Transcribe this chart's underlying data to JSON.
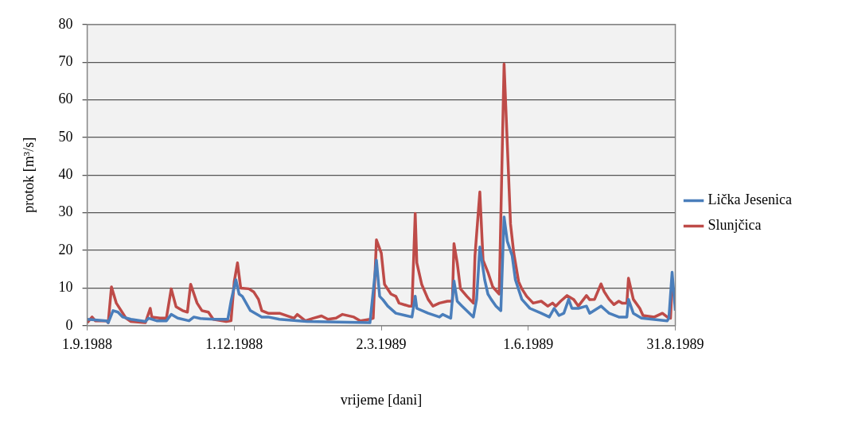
{
  "chart_data": {
    "type": "line",
    "xlabel": "vrijeme [dani]",
    "ylabel": "protok [m³/s]",
    "xlim": [
      "1988-09-01",
      "1989-08-31"
    ],
    "xticks": [
      {
        "value": "1988-09-01",
        "label": "1.9.1988"
      },
      {
        "value": "1988-12-01",
        "label": "1.12.1988"
      },
      {
        "value": "1989-03-02",
        "label": "2.3.1989"
      },
      {
        "value": "1989-06-01",
        "label": "1.6.1989"
      },
      {
        "value": "1989-08-31",
        "label": "31.8.1989"
      }
    ],
    "ylim": [
      0,
      80
    ],
    "yticks": [
      0,
      10,
      20,
      30,
      40,
      50,
      60,
      70,
      80
    ],
    "grid": "y",
    "legend": "right",
    "marker": "none",
    "line_style": "solid",
    "series": [
      {
        "name": "Lička Jesenica",
        "color": "#4a7ebb",
        "x": [
          "1988-09-01",
          "1988-09-13",
          "1988-09-14",
          "1988-09-17",
          "1988-09-20",
          "1988-09-23",
          "1988-09-28",
          "1988-10-07",
          "1988-10-09",
          "1988-10-14",
          "1988-10-20",
          "1988-10-23",
          "1988-10-27",
          "1988-11-03",
          "1988-11-06",
          "1988-11-10",
          "1988-11-19",
          "1988-11-27",
          "1988-11-29",
          "1988-12-02",
          "1988-12-04",
          "1988-12-06",
          "1988-12-11",
          "1988-12-18",
          "1988-12-22",
          "1988-12-29",
          "1989-01-10",
          "1989-01-15",
          "1989-02-23",
          "1989-02-27",
          "1989-03-01",
          "1989-03-03",
          "1989-03-06",
          "1989-03-11",
          "1989-03-17",
          "1989-03-21",
          "1989-03-23",
          "1989-03-24",
          "1989-03-31",
          "1989-04-07",
          "1989-04-09",
          "1989-04-14",
          "1989-04-16",
          "1989-04-18",
          "1989-04-21",
          "1989-04-28",
          "1989-04-30",
          "1989-05-02",
          "1989-05-05",
          "1989-05-07",
          "1989-05-09",
          "1989-05-12",
          "1989-05-15",
          "1989-05-17",
          "1989-05-19",
          "1989-05-22",
          "1989-05-24",
          "1989-05-28",
          "1989-06-02",
          "1989-06-09",
          "1989-06-14",
          "1989-06-17",
          "1989-06-20",
          "1989-06-23",
          "1989-06-26",
          "1989-06-28",
          "1989-07-02",
          "1989-07-07",
          "1989-07-09",
          "1989-07-16",
          "1989-07-21",
          "1989-07-27",
          "1989-08-01",
          "1989-08-02",
          "1989-08-05",
          "1989-08-10",
          "1989-08-26",
          "1989-08-27",
          "1989-08-29",
          "1989-08-31"
        ],
        "values": [
          1.7,
          1.3,
          0.8,
          4,
          3.6,
          2.3,
          1.7,
          1.1,
          2,
          1.3,
          1.3,
          3,
          2,
          1.3,
          2.3,
          1.9,
          1.7,
          1.7,
          6.5,
          12.2,
          8.4,
          7.8,
          4,
          2.3,
          2.3,
          1.7,
          1.3,
          1.1,
          0.8,
          17.4,
          7.8,
          6.9,
          5.2,
          3.3,
          2.7,
          2.3,
          7.8,
          4.6,
          3.3,
          2.3,
          3,
          2,
          11.9,
          6.5,
          5.2,
          2.3,
          7,
          20.9,
          12.2,
          8.4,
          7,
          5.2,
          4,
          28.9,
          22.4,
          18.6,
          12.2,
          7,
          4.6,
          3.3,
          2.3,
          4.6,
          2.7,
          3.3,
          7,
          4.6,
          4.6,
          5.2,
          3.3,
          5.2,
          3.3,
          2.3,
          2.3,
          7,
          3.3,
          2,
          1.3,
          2,
          14.2,
          4
        ]
      },
      {
        "name": "Slunjčica",
        "color": "#be4b48",
        "x": [
          "1988-09-01",
          "1988-09-04",
          "1988-09-06",
          "1988-09-13",
          "1988-09-14",
          "1988-09-16",
          "1988-09-19",
          "1988-09-22",
          "1988-09-25",
          "1988-09-28",
          "1988-10-07",
          "1988-10-10",
          "1988-10-11",
          "1988-10-16",
          "1988-10-20",
          "1988-10-23",
          "1988-10-26",
          "1988-10-30",
          "1988-11-02",
          "1988-11-04",
          "1988-11-08",
          "1988-11-11",
          "1988-11-15",
          "1988-11-18",
          "1988-11-26",
          "1988-11-29",
          "1988-12-01",
          "1988-12-03",
          "1988-12-05",
          "1988-12-10",
          "1988-12-13",
          "1988-12-16",
          "1988-12-18",
          "1988-12-22",
          "1988-12-29",
          "1989-01-07",
          "1989-01-09",
          "1989-01-14",
          "1989-01-19",
          "1989-01-24",
          "1989-01-28",
          "1989-02-02",
          "1989-02-06",
          "1989-02-13",
          "1989-02-17",
          "1989-02-23",
          "1989-02-25",
          "1989-02-27",
          "1989-03-02",
          "1989-03-04",
          "1989-03-08",
          "1989-03-11",
          "1989-03-13",
          "1989-03-19",
          "1989-03-21",
          "1989-03-23",
          "1989-03-24",
          "1989-03-27",
          "1989-03-31",
          "1989-04-03",
          "1989-04-07",
          "1989-04-12",
          "1989-04-15",
          "1989-04-16",
          "1989-04-18",
          "1989-04-20",
          "1989-04-24",
          "1989-04-28",
          "1989-04-29",
          "1989-05-02",
          "1989-05-04",
          "1989-05-07",
          "1989-05-10",
          "1989-05-14",
          "1989-05-17",
          "1989-05-21",
          "1989-05-23",
          "1989-05-26",
          "1989-05-28",
          "1989-05-31",
          "1989-06-04",
          "1989-06-09",
          "1989-06-13",
          "1989-06-16",
          "1989-06-18",
          "1989-06-21",
          "1989-06-25",
          "1989-06-29",
          "1989-07-02",
          "1989-07-07",
          "1989-07-09",
          "1989-07-12",
          "1989-07-16",
          "1989-07-18",
          "1989-07-21",
          "1989-07-24",
          "1989-07-27",
          "1989-07-29",
          "1989-08-01",
          "1989-08-02",
          "1989-08-05",
          "1989-08-09",
          "1989-08-11",
          "1989-08-18",
          "1989-08-23",
          "1989-08-26",
          "1989-08-28",
          "1989-08-29",
          "1989-08-31"
        ],
        "values": [
          0.8,
          2.3,
          1.3,
          1.3,
          0.8,
          10.3,
          6,
          4,
          2,
          1.1,
          0.8,
          4.6,
          2.3,
          2,
          2,
          9.8,
          5,
          4,
          3.6,
          11,
          6,
          4,
          3.6,
          1.7,
          1.1,
          1.3,
          11.7,
          16.7,
          10,
          9.8,
          9,
          7,
          4,
          3.3,
          3.3,
          2,
          3,
          1.3,
          2,
          2.6,
          1.7,
          2,
          3,
          2.3,
          1.3,
          1.7,
          2,
          22.8,
          19.3,
          11,
          8.4,
          7.8,
          6,
          5.2,
          5.2,
          29.8,
          16.7,
          11,
          7,
          5.2,
          6,
          6.5,
          6.5,
          21.8,
          16.7,
          9.8,
          7.8,
          6,
          18.6,
          35.5,
          17.4,
          14.2,
          10.3,
          8.4,
          69.5,
          27,
          19.3,
          11.7,
          9.8,
          7.8,
          6,
          6.5,
          5.2,
          6,
          5.2,
          6.5,
          8,
          7,
          5.2,
          8,
          6.9,
          7,
          11.1,
          9,
          7,
          5.6,
          6.5,
          6,
          6,
          12.6,
          7,
          4.6,
          2.7,
          2.3,
          3.3,
          2.3,
          2,
          10.7,
          7
        ]
      }
    ]
  }
}
